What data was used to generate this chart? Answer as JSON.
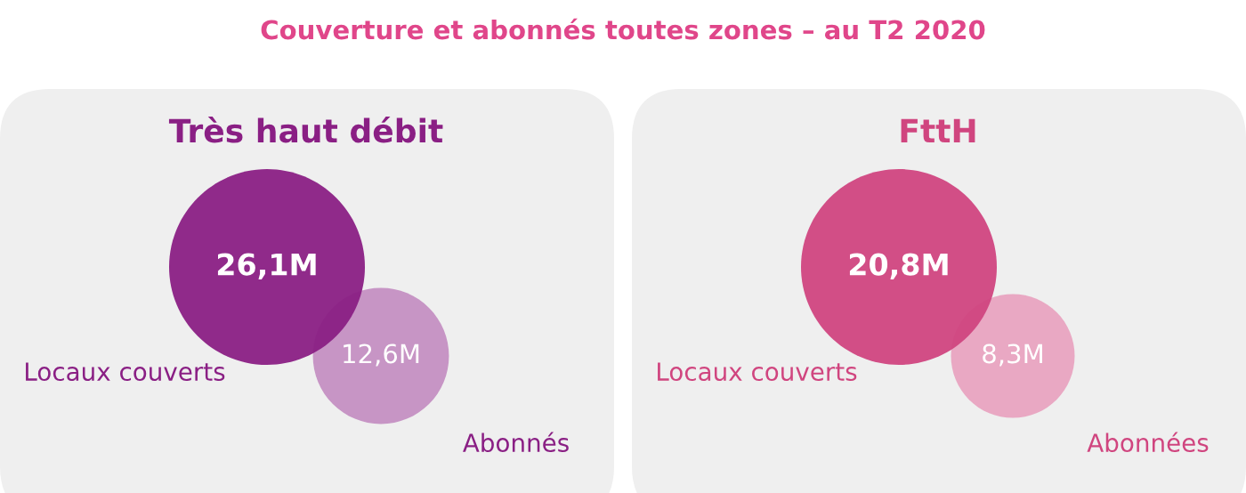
{
  "chart_data": [
    {
      "type": "other",
      "title": "Couverture et abonnés toutes zones – au T2 2020",
      "subtitle": "Très haut débit",
      "categories": [
        "Locaux couverts",
        "Abonnés"
      ],
      "values": [
        26.1,
        12.6
      ],
      "value_labels": [
        "26,1M",
        "12,6M"
      ],
      "colors": [
        "#8a1f84",
        "#c48fc2"
      ]
    },
    {
      "type": "other",
      "subtitle": "FttH",
      "categories": [
        "Locaux couverts",
        "Abonnées"
      ],
      "values": [
        20.8,
        8.3
      ],
      "value_labels": [
        "20,8M",
        "8,3M"
      ],
      "colors": [
        "#d0457f",
        "#e8a3c0"
      ]
    }
  ]
}
